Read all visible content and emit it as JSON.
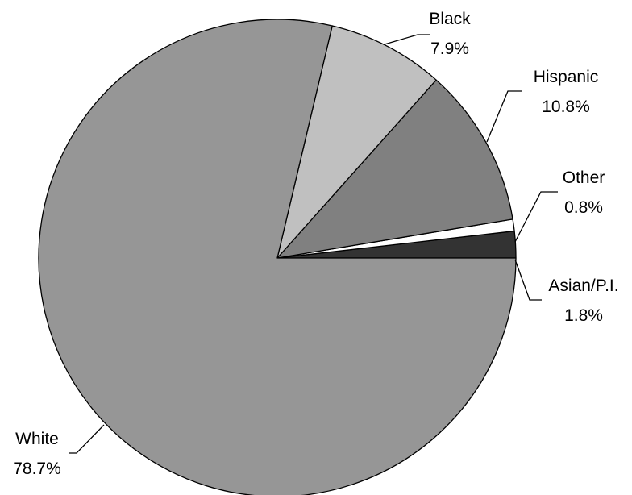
{
  "chart_data": {
    "type": "pie",
    "start_angle_deg": 0,
    "direction": "counterclockwise",
    "slices": [
      {
        "label": "Asian/P.I.",
        "value": 1.8,
        "display": "1.8%",
        "color": "#333333"
      },
      {
        "label": "Other",
        "value": 0.8,
        "display": "0.8%",
        "color": "#ffffff"
      },
      {
        "label": "Hispanic",
        "value": 10.8,
        "display": "10.8%",
        "color": "#808080"
      },
      {
        "label": "Black",
        "value": 7.9,
        "display": "7.9%",
        "color": "#c0c0c0"
      },
      {
        "label": "White",
        "value": 78.7,
        "display": "78.7%",
        "color": "#969696"
      }
    ],
    "legend": "none",
    "data_labels": "outside with leader lines"
  }
}
